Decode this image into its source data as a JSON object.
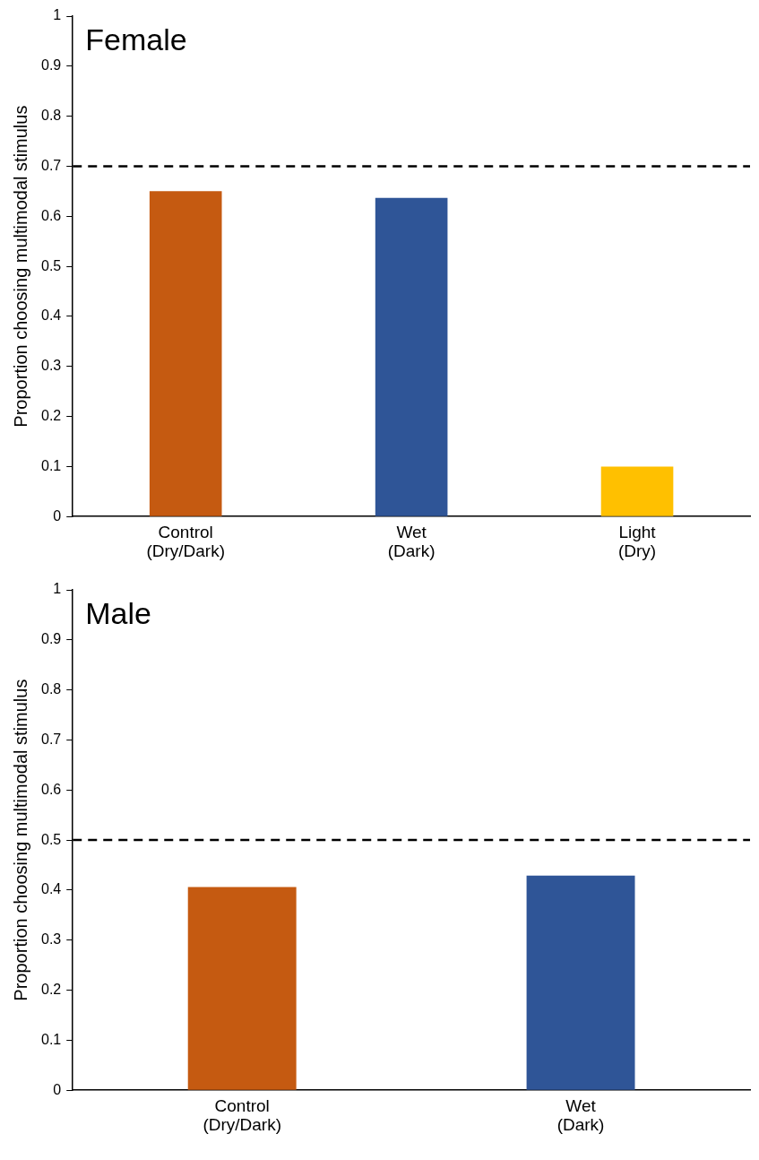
{
  "chart_data": [
    {
      "type": "bar",
      "title": "Female",
      "ylabel": "Proportion choosing multimodal stimulus",
      "categories": [
        "Control\n(Dry/Dark)",
        "Wet\n(Dark)",
        "Light\n(Dry)"
      ],
      "values": [
        0.65,
        0.637,
        0.1
      ],
      "colors": [
        "#c55a11",
        "#2f5597",
        "#ffc000"
      ],
      "ylim": [
        0,
        1
      ],
      "yticks": [
        0,
        0.1,
        0.2,
        0.3,
        0.4,
        0.5,
        0.6,
        0.7,
        0.8,
        0.9,
        1
      ],
      "grid": false,
      "legend": false,
      "ref_lines": [
        {
          "axis": "y",
          "value": 0.7,
          "color": "#000000",
          "line_style": "dashed"
        }
      ]
    },
    {
      "type": "bar",
      "title": "Male",
      "ylabel": "Proportion choosing multimodal stimulus",
      "categories": [
        "Control\n(Dry/Dark)",
        "Wet\n(Dark)"
      ],
      "values": [
        0.406,
        0.429
      ],
      "colors": [
        "#c55a11",
        "#2f5597"
      ],
      "ylim": [
        0,
        1
      ],
      "yticks": [
        0,
        0.1,
        0.2,
        0.3,
        0.4,
        0.5,
        0.6,
        0.7,
        0.8,
        0.9,
        1
      ],
      "grid": false,
      "legend": false,
      "ref_lines": [
        {
          "axis": "y",
          "value": 0.5,
          "color": "#000000",
          "line_style": "dashed"
        }
      ]
    }
  ]
}
